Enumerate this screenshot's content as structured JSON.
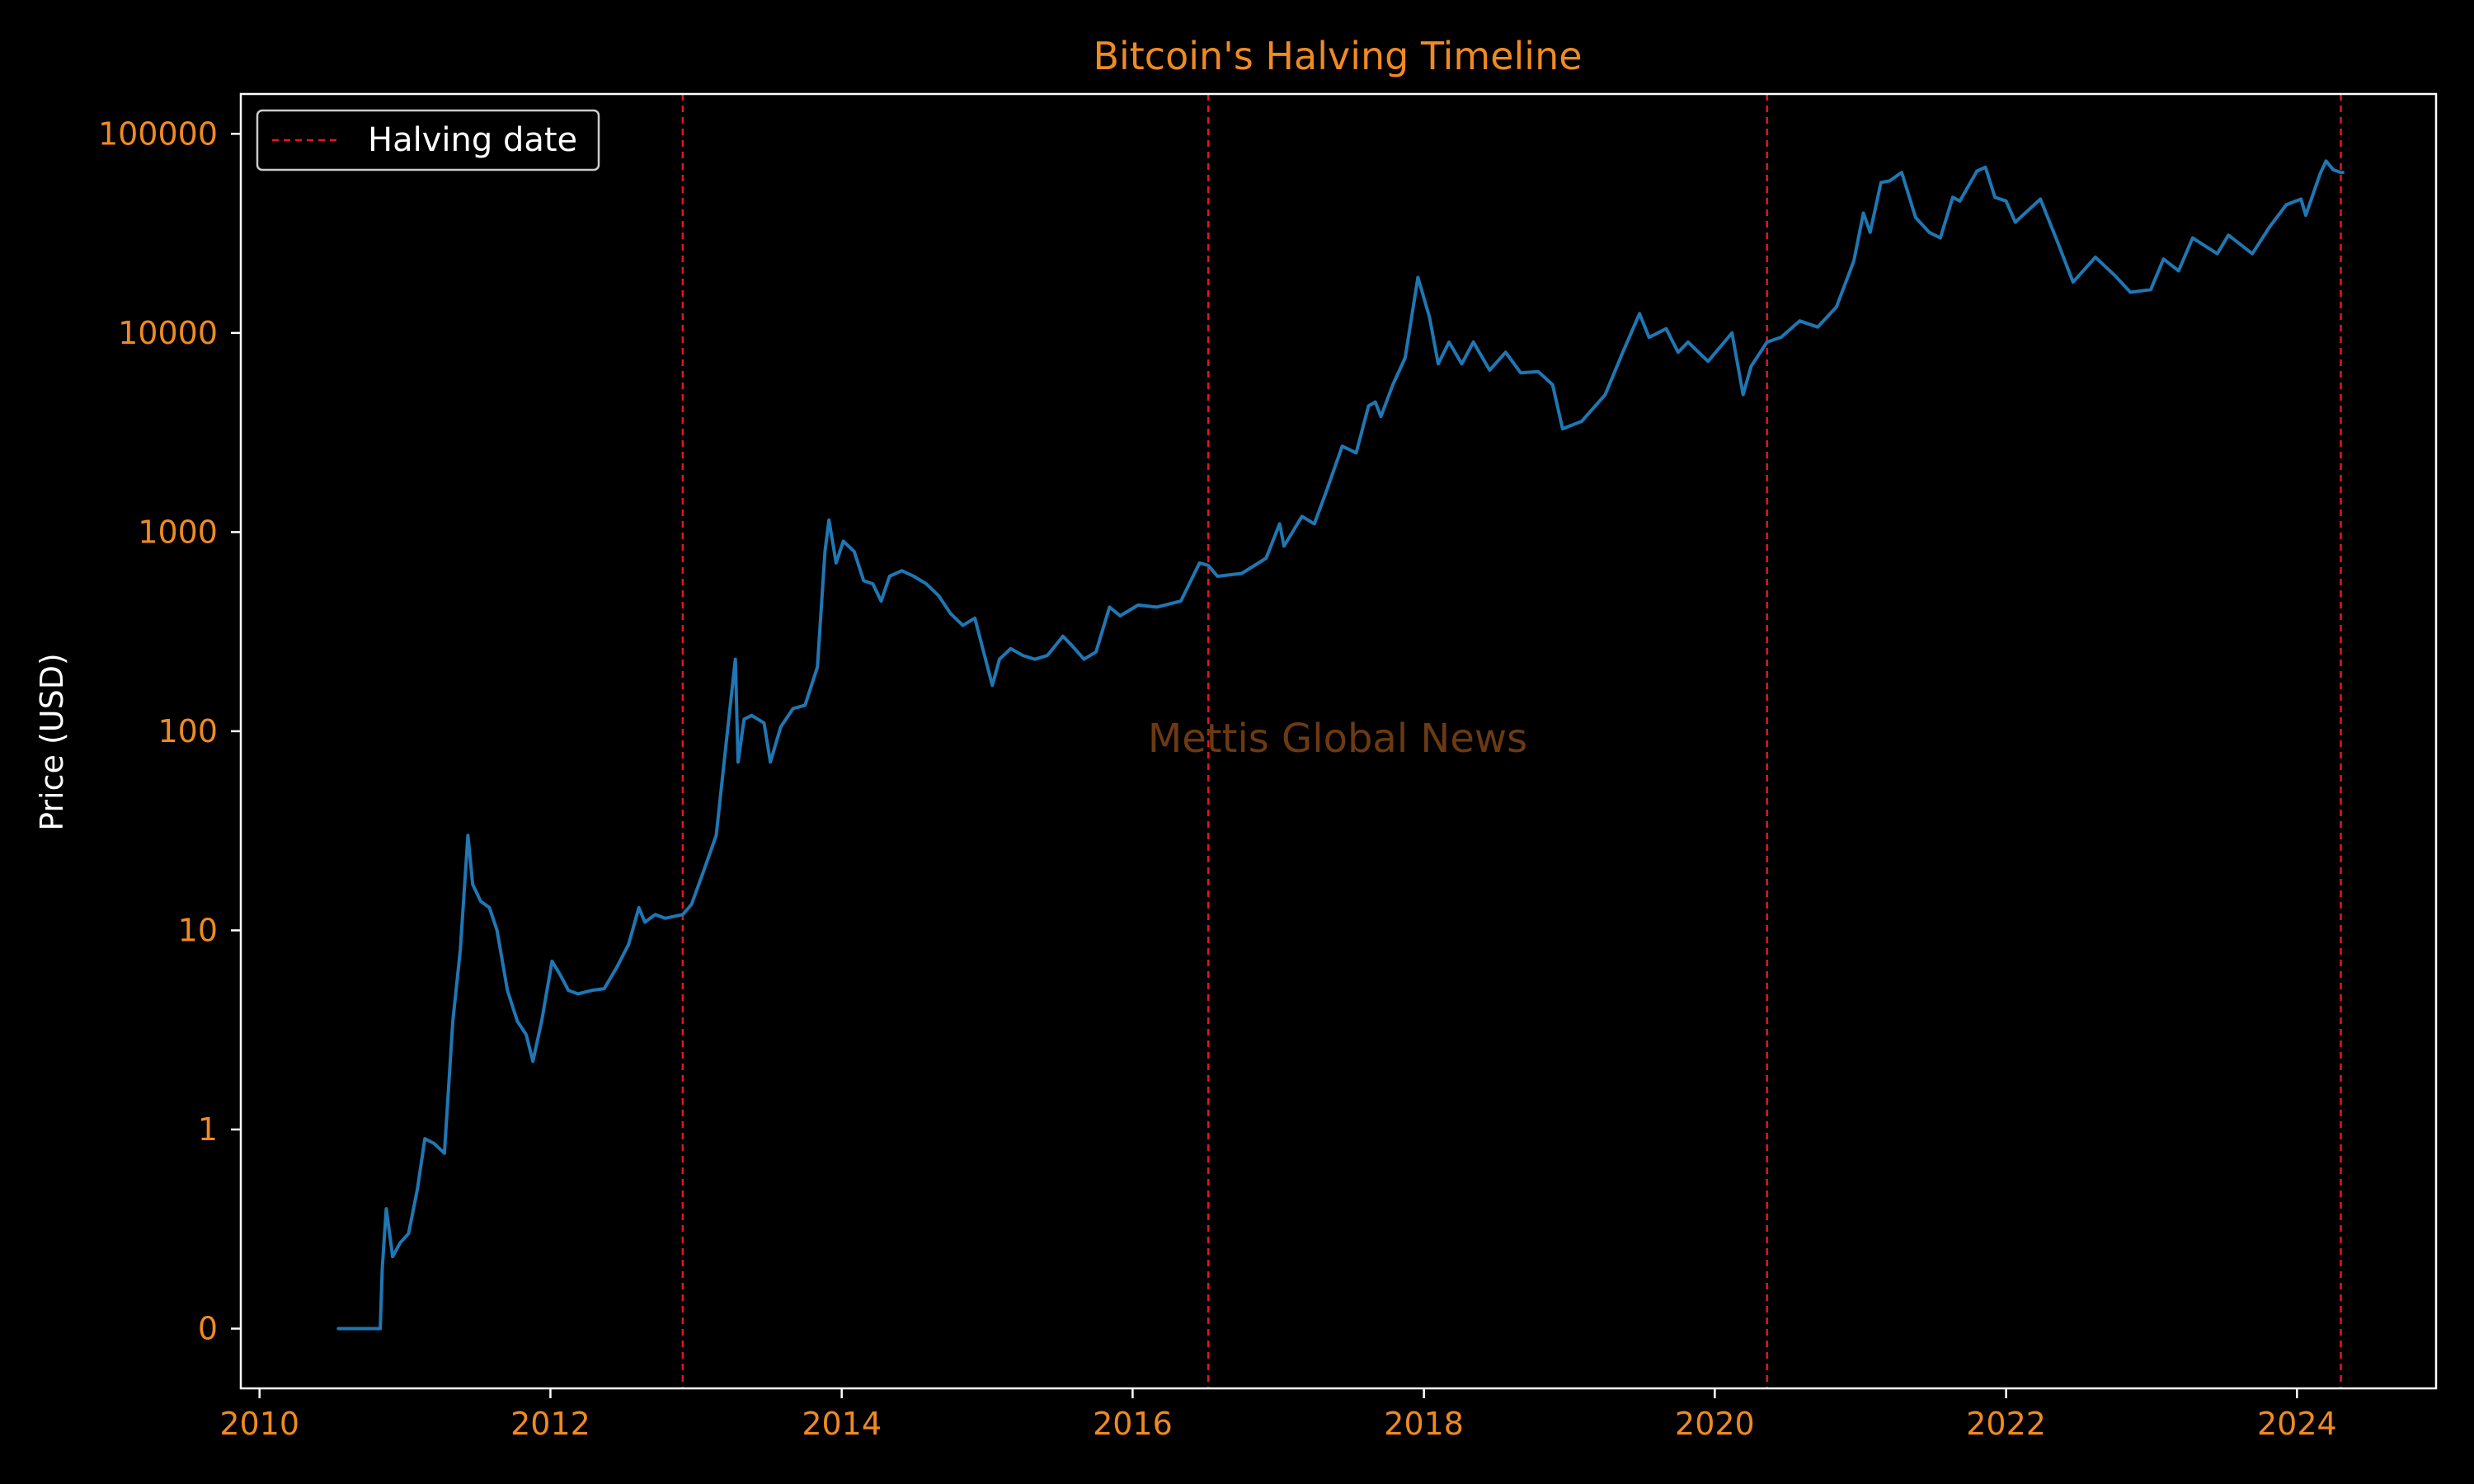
{
  "chart_data": {
    "type": "line",
    "title": "Bitcoin's Halving Timeline",
    "ylabel": "Price (USD)",
    "xlabel": "",
    "yscale": "log",
    "legend": {
      "placement": "top-left",
      "entries": [
        "Halving date"
      ]
    },
    "watermark": "Mettis Global News",
    "xlim": [
      "2009-11-15",
      "2024-12-15"
    ],
    "ylim_log10": [
      -1.3,
      5.2
    ],
    "x_ticks": [
      "2010",
      "2012",
      "2014",
      "2016",
      "2018",
      "2020",
      "2022",
      "2024"
    ],
    "y_ticks": [
      {
        "value": 0.1,
        "label": "0"
      },
      {
        "value": 1,
        "label": "1"
      },
      {
        "value": 10,
        "label": "10"
      },
      {
        "value": 100,
        "label": "100"
      },
      {
        "value": 1000,
        "label": "1000"
      },
      {
        "value": 10000,
        "label": "10000"
      },
      {
        "value": 100000,
        "label": "100000"
      }
    ],
    "halving_dates": [
      "2012-11-28",
      "2016-07-09",
      "2020-05-11",
      "2024-04-20"
    ],
    "series": [
      {
        "name": "Price",
        "x": [
          "2010-07-18",
          "2010-10-31",
          "2010-11-05",
          "2010-11-15",
          "2010-12-01",
          "2010-12-20",
          "2011-01-10",
          "2011-02-01",
          "2011-02-20",
          "2011-03-15",
          "2011-04-10",
          "2011-05-01",
          "2011-05-20",
          "2011-06-08",
          "2011-06-20",
          "2011-07-10",
          "2011-08-01",
          "2011-08-20",
          "2011-09-15",
          "2011-10-10",
          "2011-11-01",
          "2011-11-18",
          "2011-12-10",
          "2012-01-05",
          "2012-01-25",
          "2012-02-15",
          "2012-03-10",
          "2012-04-15",
          "2012-05-15",
          "2012-06-15",
          "2012-07-15",
          "2012-08-10",
          "2012-08-25",
          "2012-09-20",
          "2012-10-15",
          "2012-11-28",
          "2012-12-20",
          "2013-01-20",
          "2013-02-20",
          "2013-03-15",
          "2013-04-09",
          "2013-04-16",
          "2013-05-01",
          "2013-05-20",
          "2013-06-20",
          "2013-07-06",
          "2013-08-01",
          "2013-09-01",
          "2013-10-01",
          "2013-11-01",
          "2013-11-20",
          "2013-11-30",
          "2013-12-18",
          "2014-01-05",
          "2014-02-01",
          "2014-02-25",
          "2014-03-20",
          "2014-04-10",
          "2014-05-01",
          "2014-06-01",
          "2014-07-01",
          "2014-08-01",
          "2014-09-01",
          "2014-10-01",
          "2014-11-01",
          "2014-12-01",
          "2015-01-14",
          "2015-02-01",
          "2015-03-01",
          "2015-04-01",
          "2015-05-01",
          "2015-06-01",
          "2015-07-10",
          "2015-08-01",
          "2015-09-01",
          "2015-10-01",
          "2015-11-04",
          "2015-12-01",
          "2016-01-15",
          "2016-03-01",
          "2016-05-01",
          "2016-06-17",
          "2016-07-09",
          "2016-08-01",
          "2016-10-01",
          "2016-12-01",
          "2017-01-04",
          "2017-01-15",
          "2017-03-01",
          "2017-04-01",
          "2017-05-01",
          "2017-06-10",
          "2017-07-15",
          "2017-08-15",
          "2017-09-01",
          "2017-09-15",
          "2017-10-15",
          "2017-11-15",
          "2017-12-17",
          "2018-01-15",
          "2018-02-06",
          "2018-03-05",
          "2018-04-06",
          "2018-05-05",
          "2018-06-15",
          "2018-07-25",
          "2018-09-01",
          "2018-10-15",
          "2018-11-20",
          "2018-12-15",
          "2019-02-01",
          "2019-04-01",
          "2019-05-15",
          "2019-06-26",
          "2019-07-20",
          "2019-09-01",
          "2019-10-01",
          "2019-10-26",
          "2019-12-15",
          "2020-02-13",
          "2020-03-12",
          "2020-04-01",
          "2020-05-11",
          "2020-06-15",
          "2020-08-01",
          "2020-09-15",
          "2020-11-01",
          "2020-12-15",
          "2021-01-08",
          "2021-01-25",
          "2021-02-21",
          "2021-03-15",
          "2021-04-14",
          "2021-05-19",
          "2021-06-22",
          "2021-07-20",
          "2021-08-20",
          "2021-09-07",
          "2021-10-20",
          "2021-11-10",
          "2021-12-04",
          "2022-01-01",
          "2022-01-24",
          "2022-03-28",
          "2022-05-12",
          "2022-06-18",
          "2022-08-13",
          "2022-09-30",
          "2022-11-09",
          "2022-12-30",
          "2023-01-31",
          "2023-03-10",
          "2023-04-14",
          "2023-06-15",
          "2023-07-13",
          "2023-09-11",
          "2023-10-24",
          "2023-12-05",
          "2024-01-11",
          "2024-01-23",
          "2024-02-28",
          "2024-03-14",
          "2024-04-01",
          "2024-04-20",
          "2024-04-25"
        ],
        "y": [
          0.1,
          0.1,
          0.2,
          0.4,
          0.23,
          0.27,
          0.3,
          0.5,
          0.9,
          0.85,
          0.76,
          3.5,
          8.0,
          30,
          17,
          14,
          13,
          10,
          5,
          3.5,
          3,
          2.2,
          3.5,
          7,
          6,
          5,
          4.8,
          5,
          5.1,
          6.5,
          8.5,
          13,
          11,
          12,
          11.5,
          12,
          13.5,
          20,
          30,
          80,
          230,
          70,
          115,
          120,
          110,
          70,
          105,
          130,
          135,
          210,
          800,
          1150,
          700,
          900,
          800,
          570,
          550,
          450,
          600,
          640,
          600,
          550,
          480,
          390,
          340,
          370,
          170,
          230,
          260,
          240,
          230,
          240,
          300,
          270,
          230,
          250,
          420,
          380,
          430,
          420,
          450,
          700,
          680,
          600,
          620,
          740,
          1100,
          850,
          1200,
          1100,
          1600,
          2700,
          2500,
          4300,
          4500,
          3800,
          5500,
          7500,
          19000,
          12000,
          7000,
          9000,
          7000,
          9000,
          6500,
          8000,
          6300,
          6400,
          5500,
          3300,
          3600,
          4900,
          8000,
          12500,
          9500,
          10500,
          8000,
          9000,
          7200,
          10000,
          4900,
          6800,
          9000,
          9500,
          11500,
          10700,
          13500,
          23000,
          40000,
          32000,
          57000,
          58000,
          64000,
          38000,
          32000,
          30000,
          48000,
          46000,
          65000,
          68000,
          48000,
          46000,
          36000,
          47000,
          28000,
          18000,
          24000,
          19500,
          16000,
          16500,
          23500,
          20500,
          30000,
          25000,
          31000,
          25000,
          34000,
          44000,
          47000,
          39000,
          63000,
          73000,
          66000,
          64000,
          64000
        ]
      }
    ],
    "colors": {
      "background": "#000000",
      "line": "#1f77b4",
      "halving": "#e8141e",
      "title": "#ef8a22",
      "ticks": "#ef8a22",
      "ylabel": "#ffffff",
      "axes": "#ffffff",
      "watermark": "#6b3a14",
      "legend_text": "#ffffff"
    }
  }
}
